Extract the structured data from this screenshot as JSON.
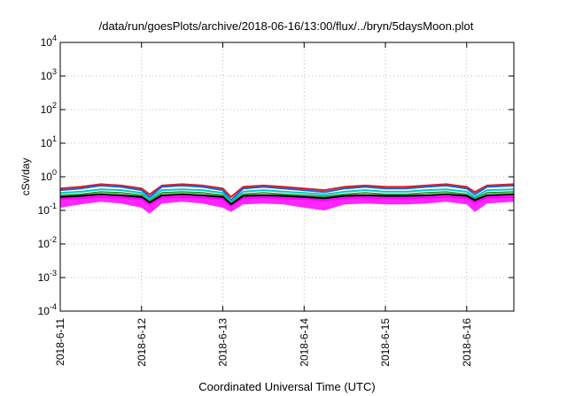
{
  "chart_data": {
    "type": "line",
    "title": "/data/run/goesPlots/archive/2018-06-16/13:00/flux/../bryn/5daysMoon.plot",
    "xlabel": "Coordinated Universal Time (UTC)",
    "ylabel": "cSv/day",
    "y_scale": "log",
    "ylim": [
      0.0001,
      10000
    ],
    "grid": true,
    "legend": "none",
    "y_ticks": [
      {
        "base": "10",
        "exp": "-4",
        "value": 0.0001
      },
      {
        "base": "10",
        "exp": "-3",
        "value": 0.001
      },
      {
        "base": "10",
        "exp": "-2",
        "value": 0.01
      },
      {
        "base": "10",
        "exp": "-1",
        "value": 0.1
      },
      {
        "base": "10",
        "exp": "0",
        "value": 1
      },
      {
        "base": "10",
        "exp": "1",
        "value": 10
      },
      {
        "base": "10",
        "exp": "2",
        "value": 100
      },
      {
        "base": "10",
        "exp": "3",
        "value": 1000
      },
      {
        "base": "10",
        "exp": "4",
        "value": 10000
      }
    ],
    "x_ticks": [
      "2018-6-11",
      "2018-6-12",
      "2018-6-13",
      "2018-6-14",
      "2018-6-15",
      "2018-6-16"
    ],
    "xlim_days": [
      0,
      5.58
    ],
    "x_days": [
      0,
      0.25,
      0.5,
      0.75,
      1.0,
      1.1,
      1.25,
      1.5,
      1.75,
      2.0,
      2.1,
      2.25,
      2.5,
      2.75,
      3.0,
      3.25,
      3.5,
      3.75,
      4.0,
      4.25,
      4.5,
      4.75,
      5.0,
      5.1,
      5.25,
      5.58
    ],
    "series": [
      {
        "color": "#e41a1c",
        "values": [
          0.45,
          0.5,
          0.6,
          0.55,
          0.45,
          0.3,
          0.55,
          0.6,
          0.55,
          0.45,
          0.25,
          0.5,
          0.55,
          0.5,
          0.45,
          0.4,
          0.5,
          0.55,
          0.5,
          0.5,
          0.55,
          0.6,
          0.5,
          0.35,
          0.55,
          0.6
        ]
      },
      {
        "color": "#1f5fd6",
        "values": [
          0.4,
          0.45,
          0.55,
          0.5,
          0.4,
          0.25,
          0.5,
          0.55,
          0.5,
          0.4,
          0.2,
          0.45,
          0.5,
          0.45,
          0.4,
          0.35,
          0.45,
          0.5,
          0.45,
          0.45,
          0.5,
          0.55,
          0.45,
          0.3,
          0.5,
          0.55
        ]
      },
      {
        "color": "#00c8c8",
        "values": [
          0.33,
          0.36,
          0.42,
          0.4,
          0.33,
          0.22,
          0.4,
          0.42,
          0.4,
          0.33,
          0.18,
          0.36,
          0.4,
          0.36,
          0.33,
          0.3,
          0.36,
          0.4,
          0.36,
          0.36,
          0.4,
          0.42,
          0.36,
          0.25,
          0.4,
          0.42
        ]
      },
      {
        "color": "#22a02c",
        "values": [
          0.28,
          0.3,
          0.35,
          0.33,
          0.28,
          0.19,
          0.33,
          0.35,
          0.33,
          0.28,
          0.16,
          0.3,
          0.33,
          0.3,
          0.28,
          0.26,
          0.3,
          0.33,
          0.3,
          0.3,
          0.33,
          0.35,
          0.3,
          0.22,
          0.33,
          0.35
        ]
      },
      {
        "color": "#000000",
        "values": [
          0.25,
          0.27,
          0.3,
          0.28,
          0.25,
          0.17,
          0.28,
          0.3,
          0.28,
          0.25,
          0.15,
          0.27,
          0.28,
          0.27,
          0.25,
          0.23,
          0.27,
          0.28,
          0.27,
          0.27,
          0.28,
          0.3,
          0.27,
          0.2,
          0.28,
          0.3
        ]
      },
      {
        "color": "#ff00ff",
        "values": [
          0.22,
          0.23,
          0.25,
          0.24,
          0.22,
          0.15,
          0.24,
          0.25,
          0.24,
          0.22,
          0.13,
          0.23,
          0.24,
          0.23,
          0.22,
          0.2,
          0.23,
          0.24,
          0.23,
          0.23,
          0.24,
          0.25,
          0.23,
          0.17,
          0.24,
          0.25
        ]
      }
    ],
    "band": {
      "color": "#ff00ff",
      "upper": [
        0.25,
        0.26,
        0.28,
        0.27,
        0.25,
        0.17,
        0.27,
        0.28,
        0.27,
        0.25,
        0.15,
        0.26,
        0.27,
        0.26,
        0.25,
        0.23,
        0.26,
        0.27,
        0.26,
        0.26,
        0.27,
        0.28,
        0.26,
        0.19,
        0.27,
        0.28
      ],
      "lower": [
        0.12,
        0.15,
        0.18,
        0.16,
        0.12,
        0.08,
        0.16,
        0.18,
        0.16,
        0.12,
        0.09,
        0.15,
        0.16,
        0.15,
        0.12,
        0.1,
        0.15,
        0.16,
        0.15,
        0.15,
        0.16,
        0.18,
        0.15,
        0.09,
        0.16,
        0.18
      ]
    }
  }
}
